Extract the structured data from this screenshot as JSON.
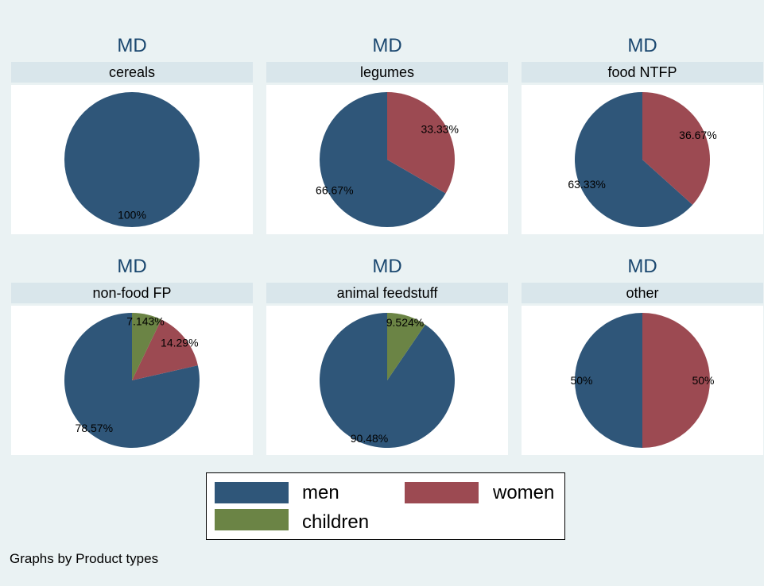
{
  "chart_data": [
    {
      "type": "pie",
      "title": "MD",
      "subtitle": "cereals",
      "slices": [
        {
          "label": "men",
          "value": 100,
          "text": "100%"
        }
      ]
    },
    {
      "type": "pie",
      "title": "MD",
      "subtitle": "legumes",
      "slices": [
        {
          "label": "men",
          "value": 66.67,
          "text": "66.67%"
        },
        {
          "label": "women",
          "value": 33.33,
          "text": "33.33%"
        }
      ]
    },
    {
      "type": "pie",
      "title": "MD",
      "subtitle": "food NTFP",
      "slices": [
        {
          "label": "men",
          "value": 63.33,
          "text": "63.33%"
        },
        {
          "label": "women",
          "value": 36.67,
          "text": "36.67%"
        }
      ]
    },
    {
      "type": "pie",
      "title": "MD",
      "subtitle": "non-food FP",
      "slices": [
        {
          "label": "men",
          "value": 78.57,
          "text": "78.57%"
        },
        {
          "label": "women",
          "value": 14.29,
          "text": "14.29%"
        },
        {
          "label": "children",
          "value": 7.143,
          "text": "7.143%"
        }
      ]
    },
    {
      "type": "pie",
      "title": "MD",
      "subtitle": "animal feedstuff",
      "slices": [
        {
          "label": "men",
          "value": 90.48,
          "text": "90.48%"
        },
        {
          "label": "children",
          "value": 9.524,
          "text": "9.524%"
        }
      ]
    },
    {
      "type": "pie",
      "title": "MD",
      "subtitle": "other",
      "slices": [
        {
          "label": "men",
          "value": 50,
          "text": "50%"
        },
        {
          "label": "women",
          "value": 50,
          "text": "50%"
        }
      ]
    }
  ],
  "legend": {
    "items": [
      {
        "key": "men",
        "label": "men",
        "color": "#2f5679"
      },
      {
        "key": "women",
        "label": "women",
        "color": "#9c4a52"
      },
      {
        "key": "children",
        "label": "children",
        "color": "#6b8445"
      }
    ]
  },
  "note": "Graphs by Product types"
}
